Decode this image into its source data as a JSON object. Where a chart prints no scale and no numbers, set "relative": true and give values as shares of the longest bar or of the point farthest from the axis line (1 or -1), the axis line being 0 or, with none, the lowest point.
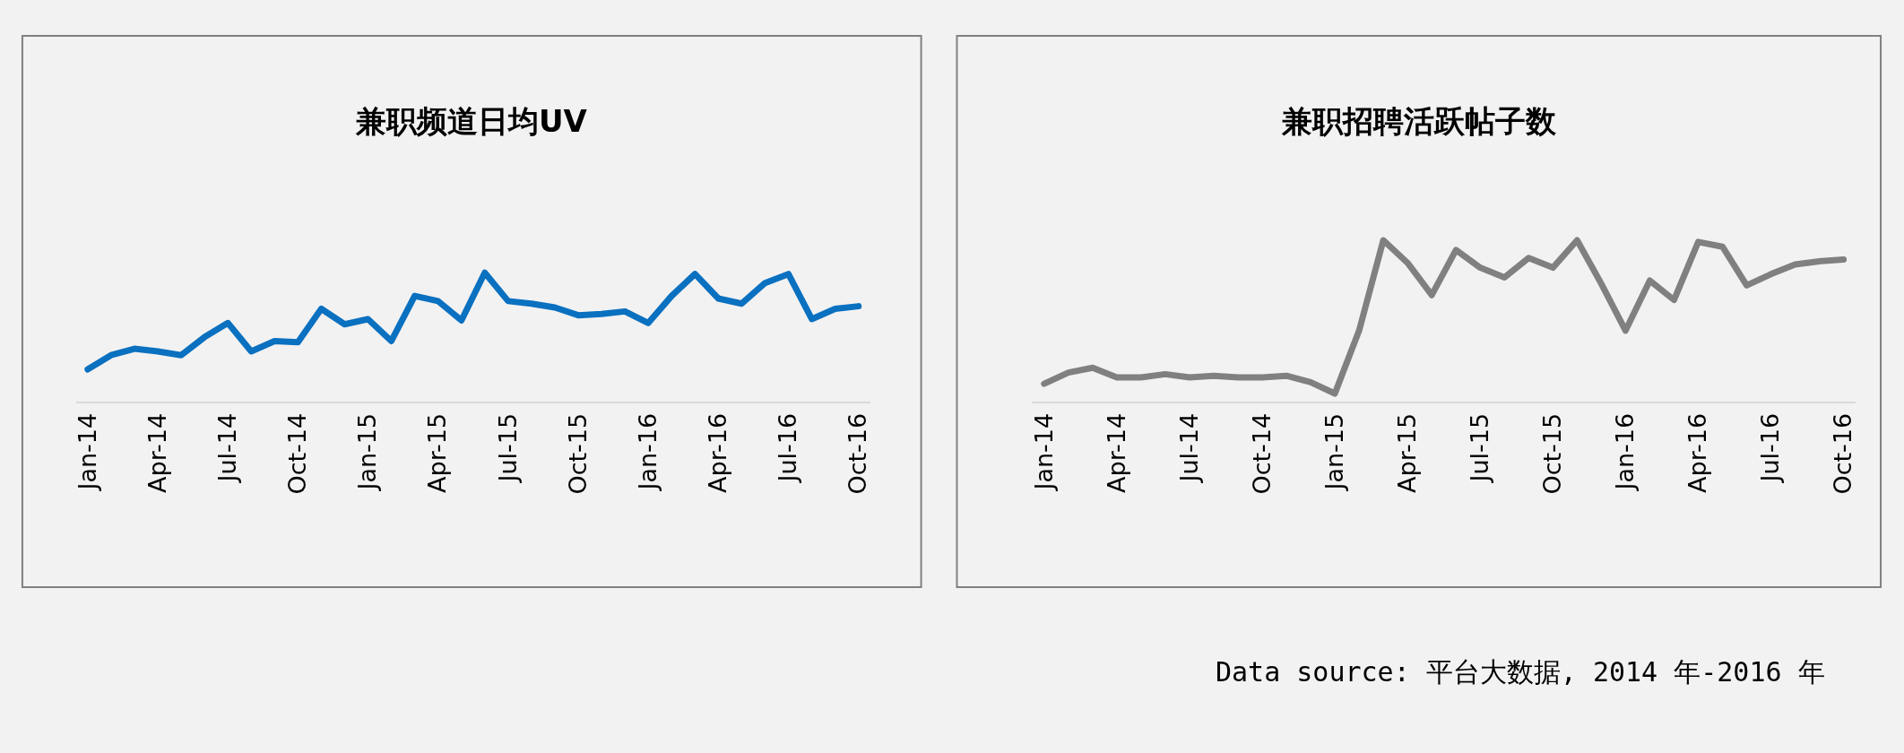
{
  "chart_data": [
    {
      "type": "line",
      "title": "兼职频道日均UV",
      "relative": true,
      "tick_labels": "x",
      "categories": [
        "Jan-14",
        null,
        null,
        "Apr-14",
        null,
        null,
        "Jul-14",
        null,
        null,
        "Oct-14",
        null,
        null,
        "Jan-15",
        null,
        null,
        "Apr-15",
        null,
        null,
        "Jul-15",
        null,
        null,
        "Oct-15",
        null,
        null,
        "Jan-16",
        null,
        null,
        "Apr-16",
        null,
        null,
        "Jul-16",
        null,
        null,
        "Oct-16"
      ],
      "series": [
        {
          "color": "#0a70c0",
          "values": [
            0.25,
            0.36,
            0.41,
            0.39,
            0.36,
            0.5,
            0.61,
            0.39,
            0.47,
            0.46,
            0.72,
            0.6,
            0.64,
            0.47,
            0.82,
            0.78,
            0.63,
            1.0,
            0.78,
            0.76,
            0.73,
            0.67,
            0.68,
            0.7,
            0.61,
            0.82,
            0.99,
            0.8,
            0.76,
            0.92,
            0.99,
            0.64,
            0.72,
            0.74
          ]
        }
      ]
    },
    {
      "type": "line",
      "title": "兼职招聘活跃帖子数",
      "relative": true,
      "tick_labels": "x",
      "categories": [
        "Jan-14",
        null,
        null,
        "Apr-14",
        null,
        null,
        "Jul-14",
        null,
        null,
        "Oct-14",
        null,
        null,
        "Jan-15",
        null,
        null,
        "Apr-15",
        null,
        null,
        "Jul-15",
        null,
        null,
        "Oct-15",
        null,
        null,
        "Jan-16",
        null,
        null,
        "Apr-16",
        null,
        null,
        "Jul-16",
        null,
        null,
        "Oct-16"
      ],
      "series": [
        {
          "color": "#808080",
          "values": [
            0.11,
            0.18,
            0.21,
            0.15,
            0.15,
            0.17,
            0.15,
            0.16,
            0.15,
            0.15,
            0.16,
            0.12,
            0.05,
            0.44,
            1.0,
            0.86,
            0.66,
            0.94,
            0.83,
            0.77,
            0.89,
            0.83,
            1.0,
            0.73,
            0.44,
            0.75,
            0.63,
            0.99,
            0.96,
            0.72,
            0.79,
            0.85,
            0.87,
            0.88
          ]
        }
      ],
      "annotations": [
        "Data source: 平台大数据, 2014 年-2016 年"
      ]
    }
  ]
}
